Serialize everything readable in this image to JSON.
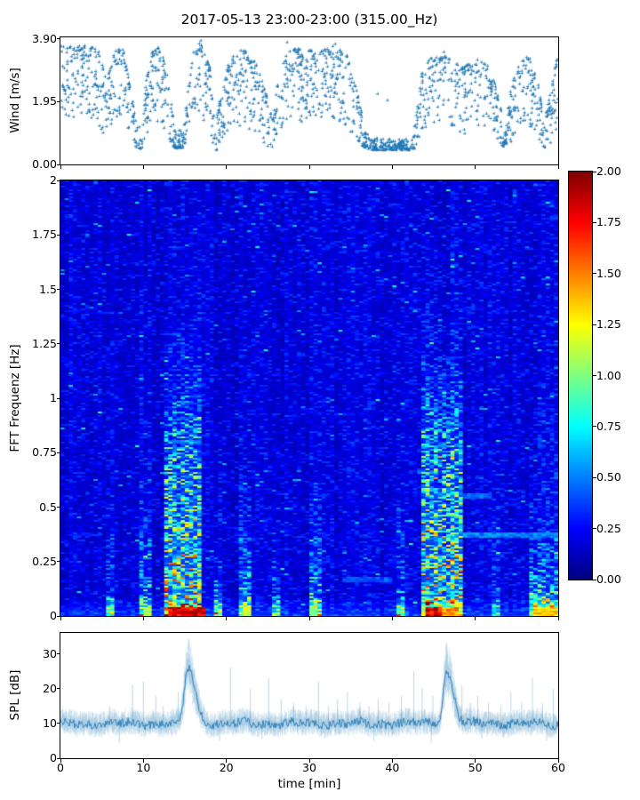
{
  "figure": {
    "title": "2017-05-13 23:00-23:00 (315.00_Hz)",
    "background": "#ffffff",
    "accent_blue": "#1f77b4"
  },
  "chart_data": [
    {
      "id": "wind",
      "type": "scatter",
      "marker": "+",
      "color": "#1f77b4",
      "ylabel": "Wind [m/s]",
      "ylim": [
        0,
        3.95
      ],
      "ytick_values": [
        0,
        1.95,
        3.9
      ],
      "ytick_labels": [
        "0.00",
        "1.95",
        "3.90"
      ],
      "xlim": [
        0,
        60
      ],
      "xtick_values": [
        0,
        10,
        20,
        30,
        40,
        50,
        60
      ],
      "n_points": 1750,
      "envelope": [
        [
          0,
          1.4,
          3.7
        ],
        [
          3,
          1.3,
          3.7
        ],
        [
          4.5,
          1.2,
          3.6
        ],
        [
          5.5,
          0.8,
          2.6
        ],
        [
          6.5,
          1.4,
          3.5
        ],
        [
          7.5,
          1.6,
          3.7
        ],
        [
          8.5,
          0.9,
          2.2
        ],
        [
          9.2,
          0.5,
          1.4
        ],
        [
          9.8,
          0.5,
          1.0
        ],
        [
          10.3,
          0.8,
          2.6
        ],
        [
          11,
          1.2,
          3.5
        ],
        [
          12,
          1.3,
          3.7
        ],
        [
          13,
          0.8,
          2.6
        ],
        [
          13.8,
          0.5,
          1.2
        ],
        [
          14.8,
          0.5,
          1.0
        ],
        [
          15.3,
          0.7,
          2.2
        ],
        [
          16,
          1.4,
          3.5
        ],
        [
          16.8,
          1.6,
          3.8
        ],
        [
          18,
          1.0,
          3.0
        ],
        [
          18.6,
          0.4,
          1.1
        ],
        [
          19.3,
          0.6,
          2.2
        ],
        [
          20.5,
          1.1,
          3.4
        ],
        [
          22,
          1.2,
          3.6
        ],
        [
          23.5,
          1.0,
          3.2
        ],
        [
          24.8,
          0.6,
          2.2
        ],
        [
          25.5,
          0.45,
          1.4
        ],
        [
          26.3,
          0.9,
          2.8
        ],
        [
          27.5,
          1.2,
          3.6
        ],
        [
          29,
          1.3,
          3.6
        ],
        [
          31,
          1.2,
          3.5
        ],
        [
          33,
          1.4,
          3.7
        ],
        [
          34.5,
          1.2,
          3.4
        ],
        [
          35.8,
          0.7,
          2.2
        ],
        [
          36.8,
          0.5,
          1.0
        ],
        [
          37.5,
          0.45,
          0.8
        ],
        [
          39,
          0.45,
          0.85
        ],
        [
          40.5,
          0.45,
          0.8
        ],
        [
          42,
          0.45,
          0.8
        ],
        [
          42.8,
          0.5,
          1.4
        ],
        [
          43.5,
          0.9,
          2.8
        ],
        [
          44.5,
          1.2,
          3.3
        ],
        [
          46,
          1.4,
          3.4
        ],
        [
          47.5,
          1.1,
          3.2
        ],
        [
          48.5,
          0.9,
          3.0
        ],
        [
          50,
          1.2,
          3.3
        ],
        [
          51.5,
          1.0,
          3.1
        ],
        [
          52.5,
          0.7,
          2.4
        ],
        [
          53.5,
          0.5,
          1.2
        ],
        [
          54.3,
          0.7,
          2.4
        ],
        [
          55.3,
          1.1,
          3.2
        ],
        [
          56.5,
          1.2,
          3.4
        ],
        [
          57.5,
          0.8,
          2.6
        ],
        [
          58.3,
          0.5,
          1.3
        ],
        [
          59,
          0.6,
          2.2
        ],
        [
          59.8,
          1.0,
          3.3
        ]
      ],
      "outliers": [
        [
          16.9,
          3.85
        ],
        [
          27.3,
          3.8
        ],
        [
          33.1,
          3.75
        ],
        [
          38.2,
          2.2
        ],
        [
          39.4,
          2.0
        ],
        [
          46.2,
          3.5
        ]
      ]
    },
    {
      "id": "spectrogram",
      "type": "heatmap",
      "ylabel": "FFT Frequenz [Hz]",
      "ylim": [
        0,
        2
      ],
      "ytick_values": [
        0,
        0.25,
        0.5,
        0.75,
        1,
        1.25,
        1.5,
        1.75,
        2
      ],
      "ytick_labels": [
        "0",
        "0.25",
        "0.5",
        "0.75",
        "1",
        "1.25",
        "1.5",
        "1.75",
        "2"
      ],
      "xlim": [
        0,
        60
      ],
      "xtick_values": [
        0,
        10,
        20,
        30,
        40,
        50,
        60
      ],
      "clim": [
        0,
        2
      ],
      "colormap": "jet",
      "colorbar_tick_values": [
        0,
        0.25,
        0.5,
        0.75,
        1,
        1.25,
        1.5,
        1.75,
        2
      ],
      "colorbar_tick_labels": [
        "0.00",
        "0.25",
        "0.50",
        "0.75",
        "1.00",
        "1.25",
        "1.50",
        "1.75",
        "2.00"
      ],
      "base_level": 0.13,
      "active_columns": [
        {
          "t0": 5.6,
          "t1": 6.6,
          "strength": 0.5,
          "fmax": 0.12
        },
        {
          "t0": 9.4,
          "t1": 11.2,
          "strength": 0.55,
          "fmax": 0.25
        },
        {
          "t0": 12.6,
          "t1": 17.2,
          "strength": 0.95,
          "fmax": 0.85
        },
        {
          "t0": 18.4,
          "t1": 19.6,
          "strength": 0.6,
          "fmax": 0.15
        },
        {
          "t0": 21.6,
          "t1": 23.2,
          "strength": 0.65,
          "fmax": 0.22
        },
        {
          "t0": 25.4,
          "t1": 26.6,
          "strength": 0.5,
          "fmax": 0.12
        },
        {
          "t0": 29.8,
          "t1": 31.6,
          "strength": 0.6,
          "fmax": 0.25
        },
        {
          "t0": 40.4,
          "t1": 41.6,
          "strength": 0.5,
          "fmax": 0.15
        },
        {
          "t0": 43.6,
          "t1": 48.6,
          "strength": 0.95,
          "fmax": 0.85
        },
        {
          "t0": 51.8,
          "t1": 53.0,
          "strength": 0.4,
          "fmax": 0.1
        },
        {
          "t0": 56.6,
          "t1": 60,
          "strength": 0.75,
          "fmax": 0.2
        }
      ],
      "hot_spots": [
        {
          "t0": 12.8,
          "t1": 17.4,
          "value": 1.9
        },
        {
          "t0": 44.0,
          "t1": 46.0,
          "value": 1.85
        },
        {
          "t0": 46.0,
          "t1": 48.2,
          "value": 1.5
        },
        {
          "t0": 22.0,
          "t1": 23.0,
          "value": 1.2
        },
        {
          "t0": 57.0,
          "t1": 60,
          "value": 1.35
        },
        {
          "t0": 9.8,
          "t1": 10.8,
          "value": 1.1
        },
        {
          "t0": 30.0,
          "t1": 31.2,
          "value": 1.0
        }
      ],
      "streak_rows": [
        {
          "f": 0.37,
          "t0": 47,
          "t1": 60,
          "value": 0.5
        },
        {
          "f": 0.55,
          "t0": 44,
          "t1": 52,
          "value": 0.45
        },
        {
          "f": 0.17,
          "t0": 34,
          "t1": 40,
          "value": 0.4
        },
        {
          "f": 0.8,
          "t0": 13,
          "t1": 17,
          "value": 0.5
        }
      ]
    },
    {
      "id": "spl",
      "type": "line",
      "color": "#1f77b4",
      "ylabel": "SPL [dB]",
      "xlabel": "time [min]",
      "ylim": [
        0,
        36
      ],
      "ytick_values": [
        0,
        10,
        20,
        30
      ],
      "ytick_labels": [
        "0",
        "10",
        "20",
        "30"
      ],
      "xlim": [
        0,
        60
      ],
      "xtick_values": [
        0,
        10,
        20,
        30,
        40,
        50,
        60
      ],
      "xtick_labels": [
        "0",
        "10",
        "20",
        "30",
        "40",
        "50",
        "60"
      ],
      "baseline": 10,
      "peaks": [
        {
          "t": 15.35,
          "height": 16,
          "width_left": 0.55,
          "width_right": 1.2
        },
        {
          "t": 46.55,
          "height": 15,
          "width_left": 0.55,
          "width_right": 1.1
        }
      ],
      "spikes": [
        [
          5.9,
          15
        ],
        [
          8.7,
          21
        ],
        [
          10.0,
          22
        ],
        [
          11.5,
          18
        ],
        [
          12.4,
          15
        ],
        [
          14.2,
          19
        ],
        [
          20.5,
          26
        ],
        [
          22.9,
          20
        ],
        [
          25.1,
          23
        ],
        [
          26.6,
          17
        ],
        [
          28.1,
          16
        ],
        [
          29.6,
          15
        ],
        [
          31.1,
          22
        ],
        [
          32.3,
          15
        ],
        [
          33.4,
          17
        ],
        [
          34.6,
          19
        ],
        [
          36.1,
          16
        ],
        [
          37.2,
          15
        ],
        [
          38.3,
          17
        ],
        [
          39.6,
          16
        ],
        [
          41.1,
          18
        ],
        [
          42.6,
          25
        ],
        [
          43.6,
          20
        ],
        [
          44.9,
          18
        ],
        [
          48.4,
          21
        ],
        [
          49.4,
          16
        ],
        [
          50.3,
          18
        ],
        [
          51.6,
          16
        ],
        [
          53.1,
          15
        ],
        [
          54.3,
          19
        ],
        [
          55.6,
          16
        ],
        [
          56.9,
          23
        ],
        [
          58.1,
          16
        ],
        [
          59.4,
          20
        ]
      ],
      "dips": [
        [
          7.1,
          4.5
        ],
        [
          19.2,
          5
        ],
        [
          24.3,
          5.5
        ],
        [
          37.8,
          5
        ],
        [
          44.7,
          4.5
        ],
        [
          50.8,
          5.5
        ],
        [
          58.6,
          5
        ]
      ]
    }
  ]
}
